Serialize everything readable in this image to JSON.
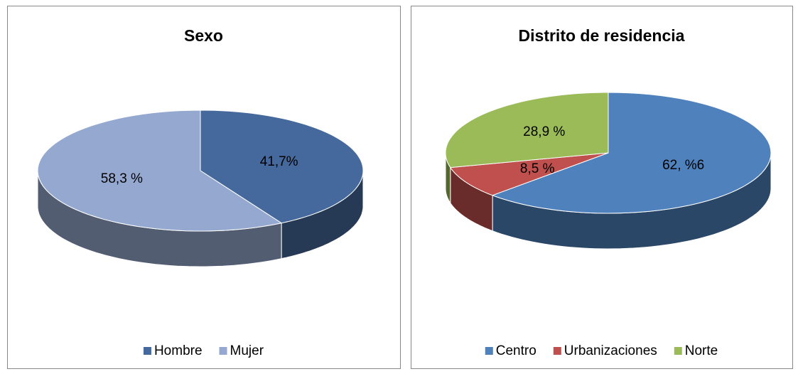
{
  "chart_data": [
    {
      "type": "pie",
      "title": "Sexo",
      "categories": [
        "Hombre",
        "Mujer"
      ],
      "values": [
        41.7,
        58.3
      ],
      "value_labels": [
        "41,7%",
        "58,3 %"
      ],
      "colors": [
        "#45699c",
        "#95a9d0"
      ]
    },
    {
      "type": "pie",
      "title": "Distrito de residencia",
      "categories": [
        "Centro",
        "Urbanizaciones",
        "Norte"
      ],
      "values": [
        62.6,
        8.5,
        28.9
      ],
      "value_labels": [
        "62, %6",
        "8,5 %",
        "28,9 %"
      ],
      "colors": [
        "#4f81bd",
        "#c0504d",
        "#9bbb59"
      ]
    }
  ]
}
